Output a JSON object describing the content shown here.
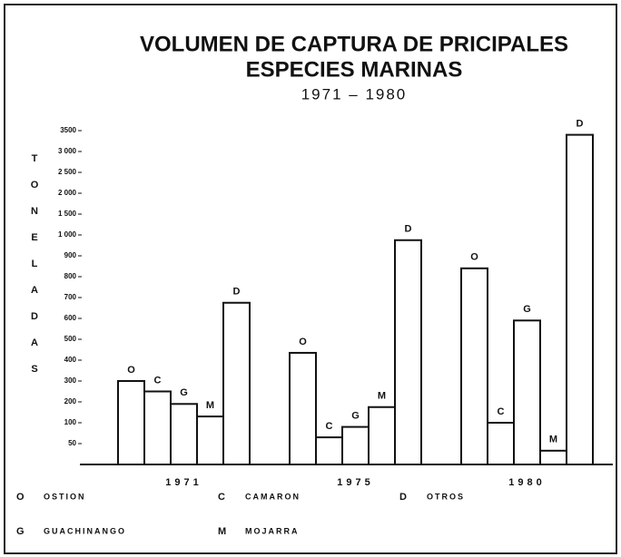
{
  "chart_data": {
    "type": "bar",
    "title": "VOLUMEN DE CAPTURA DE PRICIPALES",
    "subtitle": "ESPECIES MARINAS",
    "period": "1971 – 1980",
    "y_label": "TONELADAS",
    "categories": [
      "1971",
      "1975",
      "1980"
    ],
    "series": [
      {
        "name": "OSTION",
        "key": "O",
        "color": "#ffffff",
        "values": [
          300,
          435,
          840
        ]
      },
      {
        "name": "CAMARON",
        "key": "C",
        "color": "#ffffff",
        "values": [
          250,
          65,
          100
        ]
      },
      {
        "name": "GUACHINANGO",
        "key": "G",
        "color": "#ffffff",
        "values": [
          190,
          90,
          590
        ]
      },
      {
        "name": "MOJARRA",
        "key": "M",
        "color": "#ffffff",
        "values": [
          130,
          175,
          33
        ]
      },
      {
        "name": "OTROS",
        "key": "D",
        "color": "#ffffff",
        "values": [
          675,
          975,
          3400
        ]
      }
    ],
    "ylim": [
      0,
      3500
    ],
    "yticks": [
      50,
      100,
      200,
      300,
      400,
      500,
      600,
      700,
      800,
      900,
      {
        "value": 1000,
        "label": "1 000"
      },
      {
        "value": 1500,
        "label": "1 500"
      },
      {
        "value": 2000,
        "label": "2 000"
      },
      {
        "value": 2500,
        "label": "2 500"
      },
      {
        "value": 3000,
        "label": "3 000"
      },
      3500
    ],
    "grid": false
  }
}
